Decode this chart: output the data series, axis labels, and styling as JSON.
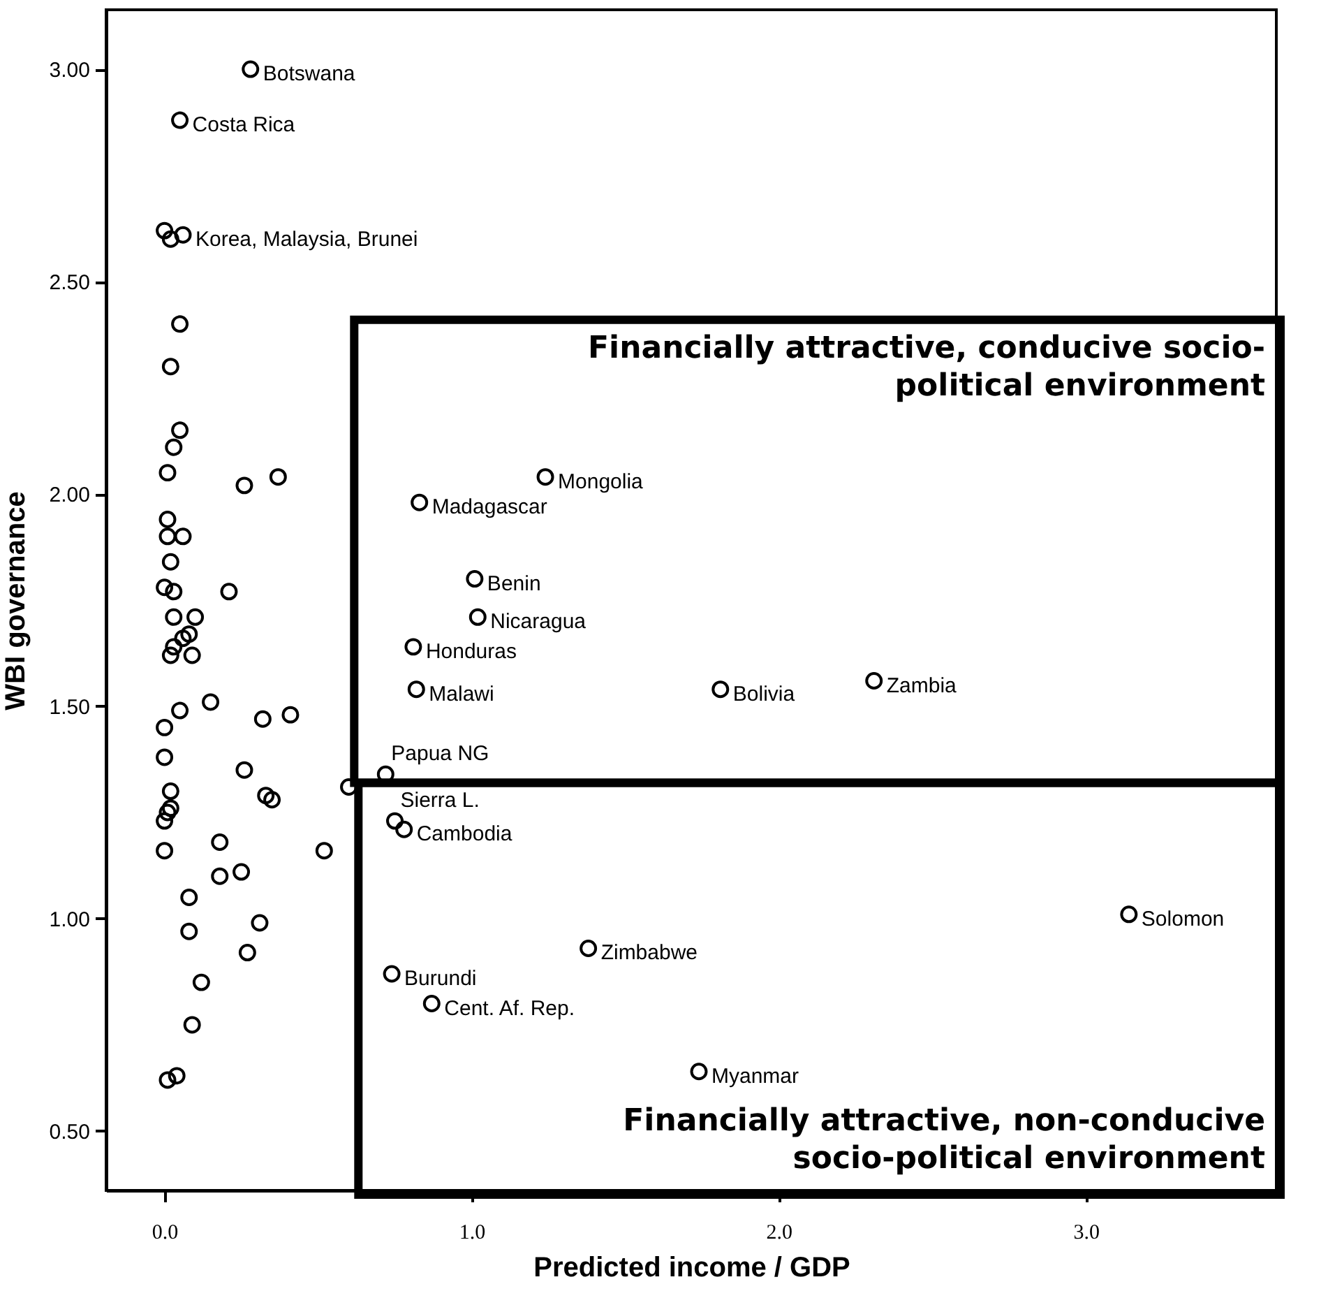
{
  "chart_data": {
    "type": "scatter",
    "xlabel": "Predicted income / GDP",
    "ylabel": "WBI governance",
    "xlim": [
      -0.19,
      3.62
    ],
    "ylim": [
      0.36,
      3.14
    ],
    "xticks": [
      {
        "value": 0,
        "label": "0.0"
      },
      {
        "value": 1,
        "label": "1.0"
      },
      {
        "value": 2,
        "label": "2.0"
      },
      {
        "value": 3,
        "label": "3.0"
      }
    ],
    "yticks": [
      {
        "value": 0.5,
        "label": "0.50"
      },
      {
        "value": 1,
        "label": "1.00"
      },
      {
        "value": 1.5,
        "label": "1.50"
      },
      {
        "value": 2,
        "label": "2.00"
      },
      {
        "value": 2.5,
        "label": "2.50"
      },
      {
        "value": 3,
        "label": "3.00"
      }
    ],
    "grid": false,
    "marker": "circle",
    "series": [
      {
        "color": "#000000",
        "x": [
          0.28,
          0.05,
          0.0,
          0.02,
          0.06,
          0.05,
          0.02,
          0.05,
          0.03,
          0.01,
          0.26,
          0.37,
          0.01,
          0.01,
          0.06,
          0.02,
          0.0,
          0.03,
          0.21,
          0.03,
          0.1,
          0.08,
          0.06,
          0.03,
          0.02,
          0.09,
          0.05,
          0.15,
          0.32,
          0.41,
          0.0,
          0.0,
          0.26,
          0.02,
          0.33,
          0.35,
          0.6,
          0.02,
          0.01,
          0.0,
          0.0,
          0.18,
          0.52,
          0.18,
          0.25,
          0.08,
          0.08,
          0.31,
          0.27,
          0.12,
          0.09,
          0.01,
          0.04,
          1.24,
          0.83,
          1.01,
          1.02,
          0.81,
          0.82,
          1.81,
          2.31,
          0.72,
          0.75,
          0.78,
          3.14,
          1.38,
          0.74,
          0.87,
          1.74
        ],
        "values": [
          3.0,
          2.88,
          2.62,
          2.6,
          2.61,
          2.4,
          2.3,
          2.15,
          2.11,
          2.05,
          2.02,
          2.04,
          1.94,
          1.9,
          1.9,
          1.84,
          1.78,
          1.77,
          1.77,
          1.71,
          1.71,
          1.67,
          1.66,
          1.64,
          1.62,
          1.62,
          1.49,
          1.51,
          1.47,
          1.48,
          1.45,
          1.38,
          1.35,
          1.3,
          1.29,
          1.28,
          1.31,
          1.26,
          1.25,
          1.23,
          1.16,
          1.18,
          1.16,
          1.1,
          1.11,
          1.05,
          0.97,
          0.99,
          0.92,
          0.85,
          0.75,
          0.62,
          0.63,
          2.04,
          1.98,
          1.8,
          1.71,
          1.64,
          1.54,
          1.54,
          1.56,
          1.34,
          1.23,
          1.21,
          1.01,
          0.93,
          0.87,
          0.8,
          0.64
        ]
      }
    ],
    "annotations": [
      "Financially attractive, conducive socio-political environment",
      "Financially attractive, non-conducive socio-political environment",
      {
        "text": "Botswana",
        "x": 0.28,
        "y": 3.0
      },
      {
        "text": "Costa Rica",
        "x": 0.05,
        "y": 2.88
      },
      {
        "text": "Korea, Malaysia, Brunei",
        "x": 0.06,
        "y": 2.61
      },
      {
        "text": "Mongolia",
        "x": 1.24,
        "y": 2.04
      },
      {
        "text": "Madagascar",
        "x": 0.83,
        "y": 1.98
      },
      {
        "text": "Benin",
        "x": 1.01,
        "y": 1.8
      },
      {
        "text": "Nicaragua",
        "x": 1.02,
        "y": 1.71
      },
      {
        "text": "Honduras",
        "x": 0.81,
        "y": 1.64
      },
      {
        "text": "Malawi",
        "x": 0.82,
        "y": 1.54
      },
      {
        "text": "Bolivia",
        "x": 1.81,
        "y": 1.54
      },
      {
        "text": "Zambia",
        "x": 2.31,
        "y": 1.56
      },
      {
        "text": "Papua NG",
        "x": 0.72,
        "y": 1.34
      },
      {
        "text": "Sierra L.",
        "x": 0.75,
        "y": 1.23
      },
      {
        "text": "Cambodia",
        "x": 0.78,
        "y": 1.21
      },
      {
        "text": "Solomon",
        "x": 3.14,
        "y": 1.01
      },
      {
        "text": "Zimbabwe",
        "x": 1.38,
        "y": 0.93
      },
      {
        "text": "Burundi",
        "x": 0.74,
        "y": 0.87
      },
      {
        "text": "Cent. Af. Rep.",
        "x": 0.87,
        "y": 0.8
      },
      {
        "text": "Myanmar",
        "x": 1.74,
        "y": 0.64
      }
    ]
  }
}
